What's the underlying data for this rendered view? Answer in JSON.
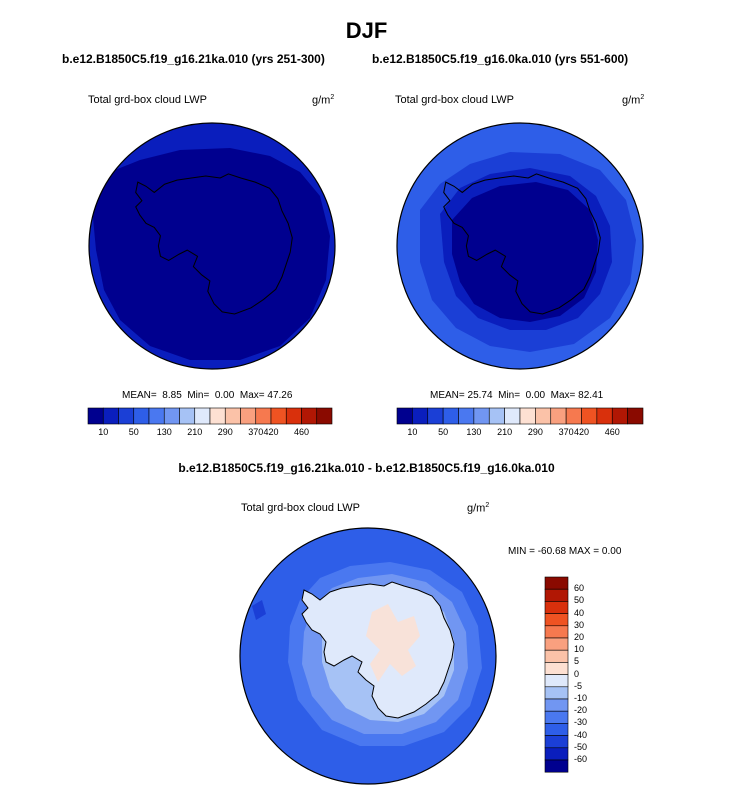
{
  "title": "DJF",
  "panels": [
    {
      "case": "b.e12.B1850C5.f19_g16.21ka.010 (yrs 251-300)",
      "label": "Total grd-box cloud LWP",
      "units": "g/m",
      "units_exp": "2",
      "mean_label": "MEAN=",
      "mean": "8.85",
      "min_label": "Min=",
      "min": "0.00",
      "max_label": "Max=",
      "max": "47.26"
    },
    {
      "case": "b.e12.B1850C5.f19_g16.0ka.010 (yrs 551-600)",
      "label": "Total grd-box cloud LWP",
      "units": "g/m",
      "units_exp": "2",
      "mean_label": "MEAN=",
      "mean": "25.74",
      "min_label": "Min=",
      "min": "0.00",
      "max_label": "Max=",
      "max": "82.41"
    }
  ],
  "colorbar": {
    "ticks": [
      "10",
      "50",
      "130",
      "210",
      "290",
      "370",
      "420",
      "460"
    ],
    "colors": [
      "#00008f",
      "#0a1ebd",
      "#1b3fd6",
      "#2e5ee8",
      "#4a78f0",
      "#7196f2",
      "#a6c2f5",
      "#dfe9fb",
      "#fde0d2",
      "#fbc2a8",
      "#f9a07f",
      "#f6794f",
      "#ef5322",
      "#d9300c",
      "#b11704",
      "#8a0a00"
    ]
  },
  "diff": {
    "title": "b.e12.B1850C5.f19_g16.21ka.010 - b.e12.B1850C5.f19_g16.0ka.010",
    "label": "Total grd-box cloud LWP",
    "units": "g/m",
    "units_exp": "2",
    "stats": "MIN = -60.68 MAX =   0.00",
    "colorbar_ticks": [
      "60",
      "50",
      "40",
      "30",
      "20",
      "10",
      "5",
      "0",
      "-5",
      "-10",
      "-20",
      "-30",
      "-40",
      "-50",
      "-60"
    ],
    "colorbar_colors": [
      "#8a0a00",
      "#b11704",
      "#d9300c",
      "#ef5322",
      "#f6794f",
      "#f9a07f",
      "#fbc2a8",
      "#fde0d2",
      "#dfe9fb",
      "#a6c2f5",
      "#7196f2",
      "#4a78f0",
      "#2e5ee8",
      "#1b3fd6",
      "#0a1ebd",
      "#00008f"
    ]
  },
  "chart_data": [
    {
      "type": "heatmap",
      "projection": "south polar stereographic",
      "variable": "Total grd-box cloud LWP",
      "units": "g/m2",
      "mean": 8.85,
      "min": 0.0,
      "max": 47.26,
      "contour_levels": [
        10,
        50,
        130,
        210,
        290,
        370,
        420,
        460
      ]
    },
    {
      "type": "heatmap",
      "projection": "south polar stereographic",
      "variable": "Total grd-box cloud LWP",
      "units": "g/m2",
      "mean": 25.74,
      "min": 0.0,
      "max": 82.41,
      "contour_levels": [
        10,
        50,
        130,
        210,
        290,
        370,
        420,
        460
      ]
    },
    {
      "type": "heatmap",
      "projection": "south polar stereographic",
      "variable": "Total grd-box cloud LWP difference",
      "units": "g/m2",
      "min": -60.68,
      "max": 0.0,
      "contour_levels": [
        -60,
        -50,
        -40,
        -30,
        -20,
        -10,
        -5,
        0,
        5,
        10,
        20,
        30,
        40,
        50,
        60
      ]
    }
  ]
}
